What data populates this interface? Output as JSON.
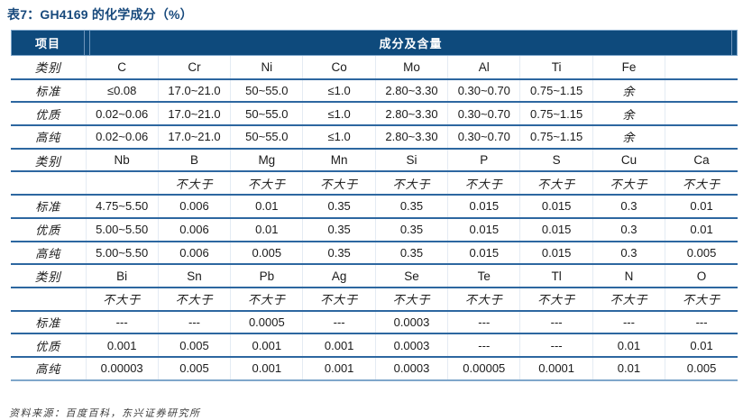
{
  "title": "表7：GH4169 的化学成分（%）",
  "header": {
    "item_label": "项目",
    "span_label": "成分及含量"
  },
  "table": {
    "rows": [
      {
        "type": "category",
        "label": "类别",
        "cells": [
          "C",
          "Cr",
          "Ni",
          "Co",
          "Mo",
          "Al",
          "Ti",
          "Fe",
          ""
        ]
      },
      {
        "type": "data",
        "label": "标准",
        "cells": [
          "≤0.08",
          "17.0~21.0",
          "50~55.0",
          "≤1.0",
          "2.80~3.30",
          "0.30~0.70",
          "0.75~1.15",
          "余",
          ""
        ]
      },
      {
        "type": "data",
        "label": "优质",
        "cells": [
          "0.02~0.06",
          "17.0~21.0",
          "50~55.0",
          "≤1.0",
          "2.80~3.30",
          "0.30~0.70",
          "0.75~1.15",
          "余",
          ""
        ]
      },
      {
        "type": "data",
        "label": "高纯",
        "cells": [
          "0.02~0.06",
          "17.0~21.0",
          "50~55.0",
          "≤1.0",
          "2.80~3.30",
          "0.30~0.70",
          "0.75~1.15",
          "余",
          ""
        ]
      },
      {
        "type": "category",
        "label": "类别",
        "cells": [
          "Nb",
          "B",
          "Mg",
          "Mn",
          "Si",
          "P",
          "S",
          "Cu",
          "Ca"
        ]
      },
      {
        "type": "limit",
        "label": "",
        "cells": [
          "",
          "不大于",
          "不大于",
          "不大于",
          "不大于",
          "不大于",
          "不大于",
          "不大于",
          "不大于"
        ]
      },
      {
        "type": "data",
        "label": "标准",
        "cells": [
          "4.75~5.50",
          "0.006",
          "0.01",
          "0.35",
          "0.35",
          "0.015",
          "0.015",
          "0.3",
          "0.01"
        ]
      },
      {
        "type": "data",
        "label": "优质",
        "cells": [
          "5.00~5.50",
          "0.006",
          "0.01",
          "0.35",
          "0.35",
          "0.015",
          "0.015",
          "0.3",
          "0.01"
        ]
      },
      {
        "type": "data",
        "label": "高纯",
        "cells": [
          "5.00~5.50",
          "0.006",
          "0.005",
          "0.35",
          "0.35",
          "0.015",
          "0.015",
          "0.3",
          "0.005"
        ]
      },
      {
        "type": "category",
        "label": "类别",
        "cells": [
          "Bi",
          "Sn",
          "Pb",
          "Ag",
          "Se",
          "Te",
          "Tl",
          "N",
          "O"
        ]
      },
      {
        "type": "limit",
        "label": "",
        "cells": [
          "不大于",
          "不大于",
          "不大于",
          "不大于",
          "不大于",
          "不大于",
          "不大于",
          "不大于",
          "不大于"
        ]
      },
      {
        "type": "data",
        "label": "标准",
        "cells": [
          "---",
          "---",
          "0.0005",
          "---",
          "0.0003",
          "---",
          "---",
          "---",
          "---"
        ]
      },
      {
        "type": "data",
        "label": "优质",
        "cells": [
          "0.001",
          "0.005",
          "0.001",
          "0.001",
          "0.0003",
          "---",
          "---",
          "0.01",
          "0.01"
        ]
      },
      {
        "type": "data",
        "label": "高纯",
        "cells": [
          "0.00003",
          "0.005",
          "0.001",
          "0.001",
          "0.0003",
          "0.00005",
          "0.0001",
          "0.01",
          "0.005"
        ]
      }
    ]
  },
  "footer": {
    "source_note": "资料来源：百度百科，东兴证券研究所"
  },
  "colors": {
    "header_bg": "#0e4a7c",
    "header_text": "#ffffff",
    "title_text": "#17497c",
    "row_border": "#2d67a0",
    "outer_bottom_border": "#7fa7cb",
    "header_divider": "#6e94ba",
    "cell_text": "#1a1a1a",
    "source_text": "#3c3c3c"
  }
}
